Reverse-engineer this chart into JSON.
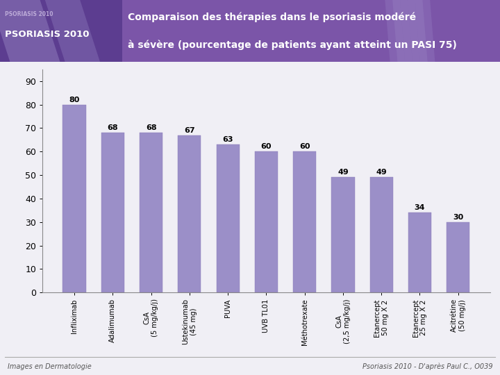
{
  "title_line1": "Comparaison des thérapies dans le psoriasis modéré",
  "title_line2": "à sévère (pourcentage de patients ayant atteint un PASI 75)",
  "categories": [
    "Infliximab",
    "Adalimumab",
    "CsA\n(5 mg/kg/j)",
    "Ustekinumab\n(45 mg)",
    "PUVA",
    "UVB TL01",
    "Méthotrexate",
    "CsA\n(2,5 mg/kg/j)",
    "Etanercept\n50 mg X 2",
    "Etanercept\n25 mg X 2",
    "Acitrétine\n(50 mg/j)"
  ],
  "values": [
    80,
    68,
    68,
    67,
    63,
    60,
    60,
    49,
    49,
    34,
    30
  ],
  "bar_color": "#9b8fc8",
  "bar_edge_color": "#8878b8",
  "header_bg_color": "#7b55a8",
  "header_dark_color": "#5c3d90",
  "background_color": "#f0eff5",
  "chart_bg_color": "#f0eff5",
  "ylabel_ticks": [
    0,
    10,
    20,
    30,
    40,
    50,
    60,
    70,
    80,
    90
  ],
  "ylim": [
    0,
    95
  ],
  "footer_left": "Images en Dermatologie",
  "footer_right": "Psoriasis 2010 - D'après Paul C., O039",
  "logo_text_small": "PSORIASIS 2010",
  "logo_text_big": "PSORIASIS 2010"
}
